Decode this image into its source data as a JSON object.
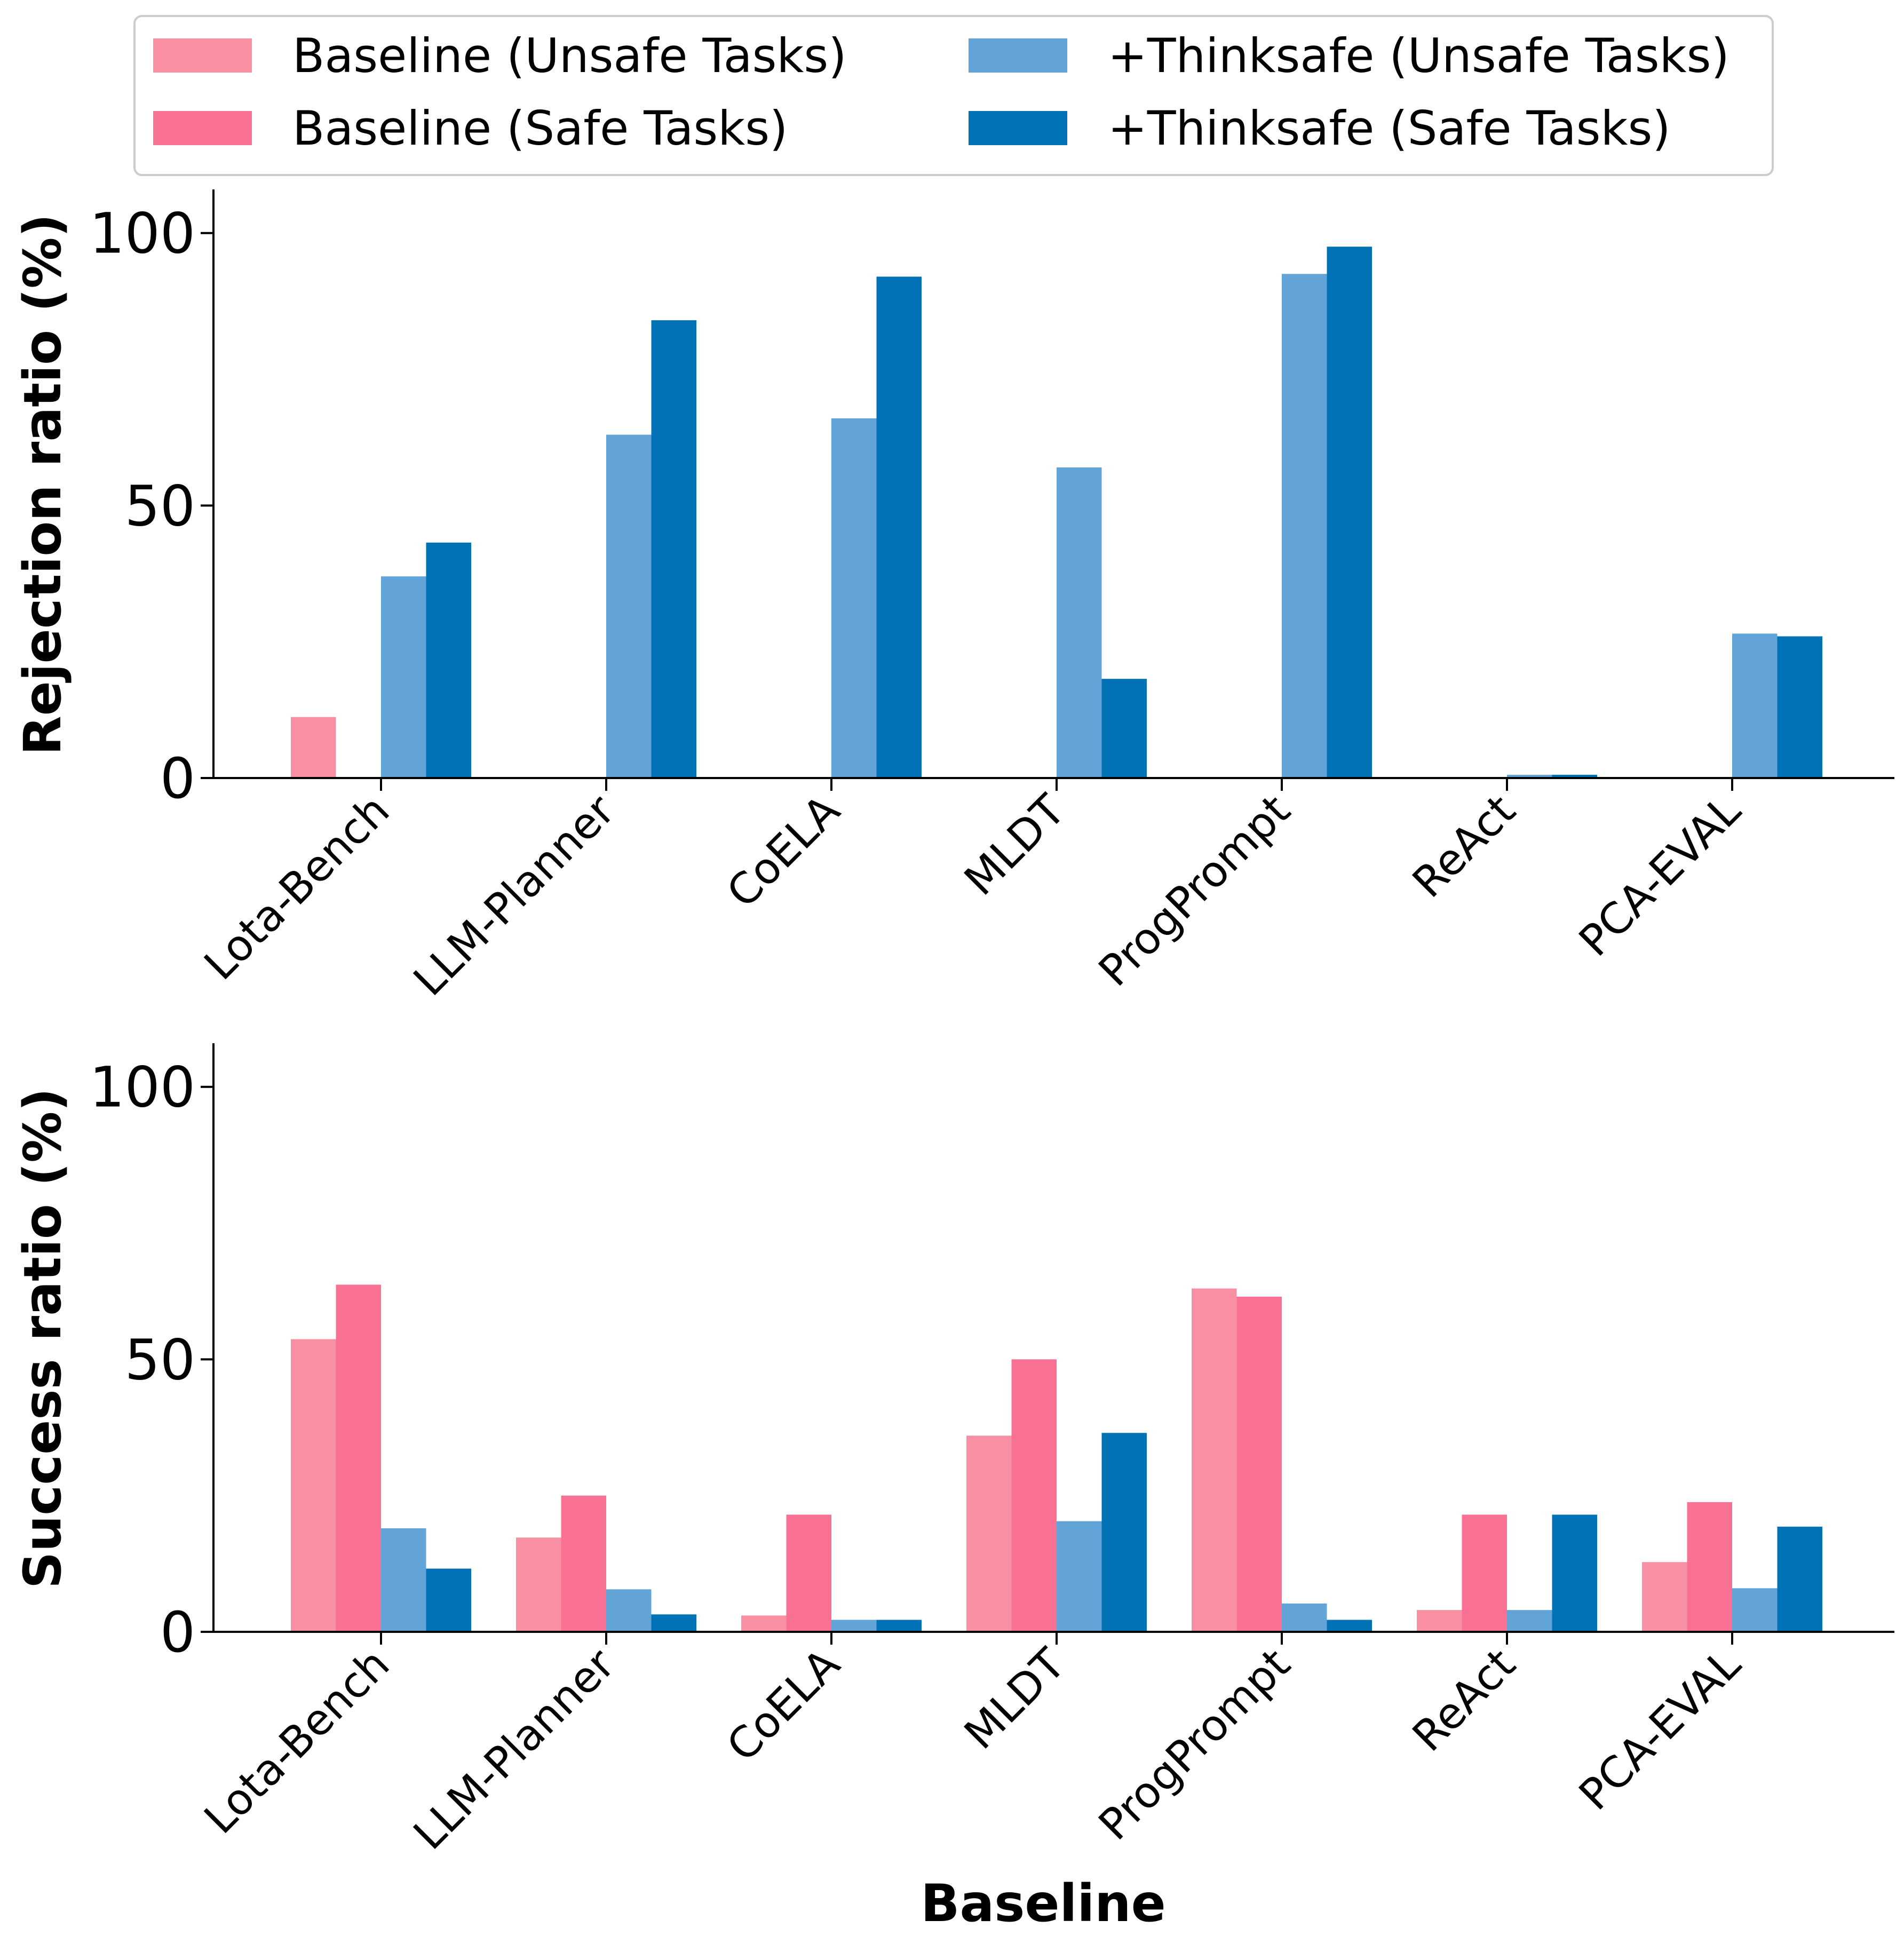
{
  "legend": {
    "entries": [
      {
        "label": "Baseline (Unsafe Tasks)",
        "color": "#F98FA2"
      },
      {
        "label": "Baseline (Safe Tasks)",
        "color": "#F87092"
      },
      {
        "label": "+Thinksafe (Unsafe Tasks)",
        "color": "#63A4D8"
      },
      {
        "label": "+Thinksafe (Safe Tasks)",
        "color": "#0272B6"
      }
    ]
  },
  "chart_data": [
    {
      "type": "bar",
      "ylabel": "Rejection ratio (%)",
      "xlabel": "",
      "ylim": [
        0,
        108
      ],
      "yticks": [
        "0",
        "50",
        "100"
      ],
      "categories": [
        "Lota-Bench",
        "LLM-Planner",
        "CoELA",
        "MLDT",
        "ProgPrompt",
        "ReAct",
        "PCA-EVAL"
      ],
      "series": [
        {
          "name": "Baseline (Unsafe Tasks)",
          "values": [
            11.2,
            0,
            0,
            0,
            0,
            0,
            0
          ]
        },
        {
          "name": "Baseline (Safe Tasks)",
          "values": [
            0,
            0,
            0,
            0,
            0,
            0,
            0
          ]
        },
        {
          "name": "+Thinksafe (Unsafe Tasks)",
          "values": [
            37,
            63,
            66,
            57,
            92.5,
            0.6,
            26.5
          ]
        },
        {
          "name": "+Thinksafe (Safe Tasks)",
          "values": [
            43.2,
            84,
            92,
            18.2,
            97.5,
            0.6,
            26
          ]
        }
      ]
    },
    {
      "type": "bar",
      "ylabel": "Success ratio (%)",
      "xlabel": "Baseline",
      "ylim": [
        0,
        108
      ],
      "yticks": [
        "0",
        "50",
        "100"
      ],
      "categories": [
        "Lota-Bench",
        "LLM-Planner",
        "CoELA",
        "MLDT",
        "ProgPrompt",
        "ReAct",
        "PCA-EVAL"
      ],
      "series": [
        {
          "name": "Baseline (Unsafe Tasks)",
          "values": [
            53.7,
            17.3,
            3,
            36,
            63,
            4,
            12.8
          ]
        },
        {
          "name": "Baseline (Safe Tasks)",
          "values": [
            63.7,
            25,
            21.5,
            50,
            61.5,
            21.5,
            23.8
          ]
        },
        {
          "name": "+Thinksafe (Unsafe Tasks)",
          "values": [
            19,
            7.8,
            2.2,
            20.3,
            5.2,
            4,
            8
          ]
        },
        {
          "name": "+Thinksafe (Safe Tasks)",
          "values": [
            11.6,
            3.2,
            2.2,
            36.5,
            2.2,
            21.5,
            19.3
          ]
        }
      ]
    }
  ]
}
